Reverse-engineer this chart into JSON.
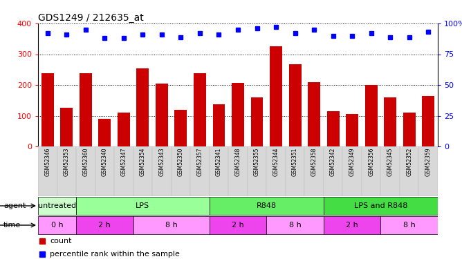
{
  "title": "GDS1249 / 212635_at",
  "samples": [
    "GSM52346",
    "GSM52353",
    "GSM52360",
    "GSM52340",
    "GSM52347",
    "GSM52354",
    "GSM52343",
    "GSM52350",
    "GSM52357",
    "GSM52341",
    "GSM52348",
    "GSM52355",
    "GSM52344",
    "GSM52351",
    "GSM52358",
    "GSM52342",
    "GSM52349",
    "GSM52356",
    "GSM52345",
    "GSM52352",
    "GSM52359"
  ],
  "counts": [
    238,
    125,
    238,
    90,
    110,
    255,
    205,
    120,
    238,
    138,
    207,
    160,
    325,
    268,
    208,
    115,
    105,
    200,
    160,
    110,
    165
  ],
  "percentiles": [
    92,
    91,
    95,
    88,
    88,
    91,
    91,
    89,
    92,
    91,
    95,
    96,
    97,
    92,
    95,
    90,
    90,
    92,
    89,
    89,
    93
  ],
  "bar_color": "#cc0000",
  "dot_color": "#0000ff",
  "ylim_left": [
    0,
    400
  ],
  "ylim_right": [
    0,
    100
  ],
  "yticks_left": [
    0,
    100,
    200,
    300,
    400
  ],
  "yticks_right": [
    0,
    25,
    50,
    75,
    100
  ],
  "ytick_labels_right": [
    "0",
    "25",
    "50",
    "75",
    "100%"
  ],
  "agent_groups": [
    {
      "label": "untreated",
      "start": 0,
      "end": 2,
      "color": "#ccffcc"
    },
    {
      "label": "LPS",
      "start": 2,
      "end": 9,
      "color": "#99ff99"
    },
    {
      "label": "R848",
      "start": 9,
      "end": 15,
      "color": "#66ee66"
    },
    {
      "label": "LPS and R848",
      "start": 15,
      "end": 21,
      "color": "#44dd44"
    }
  ],
  "time_groups": [
    {
      "label": "0 h",
      "start": 0,
      "end": 2,
      "color": "#ff99ff"
    },
    {
      "label": "2 h",
      "start": 2,
      "end": 5,
      "color": "#ee44ee"
    },
    {
      "label": "8 h",
      "start": 5,
      "end": 9,
      "color": "#ff99ff"
    },
    {
      "label": "2 h",
      "start": 9,
      "end": 12,
      "color": "#ee44ee"
    },
    {
      "label": "8 h",
      "start": 12,
      "end": 15,
      "color": "#ff99ff"
    },
    {
      "label": "2 h",
      "start": 15,
      "end": 18,
      "color": "#ee44ee"
    },
    {
      "label": "8 h",
      "start": 18,
      "end": 21,
      "color": "#ff99ff"
    }
  ],
  "legend_count_label": "count",
  "legend_pct_label": "percentile rank within the sample"
}
